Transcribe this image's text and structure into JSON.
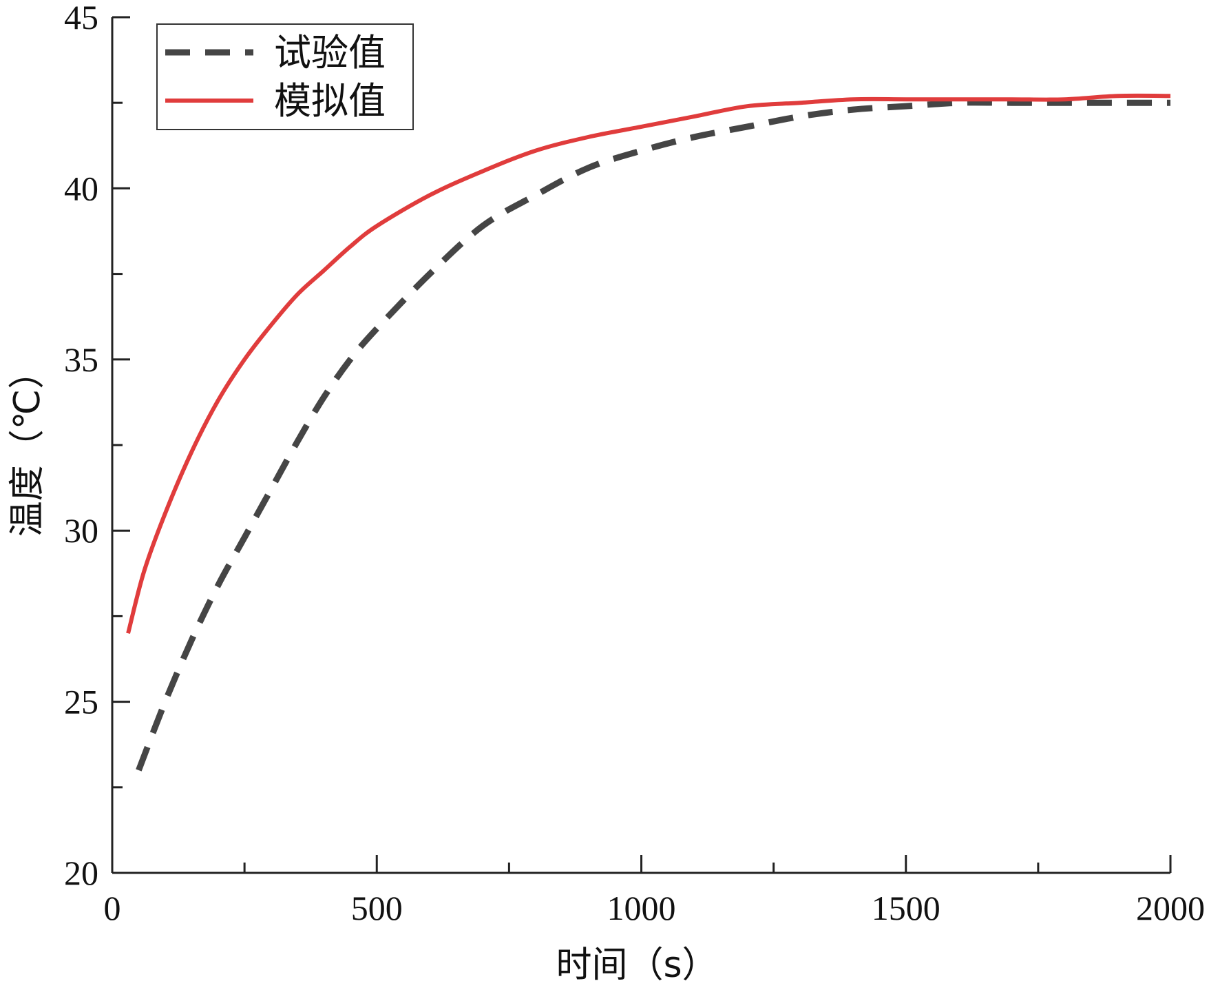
{
  "chart_data": {
    "type": "line",
    "xlabel": "时间（s）",
    "ylabel": "温度（℃）",
    "xlim": [
      0,
      2000
    ],
    "ylim": [
      20,
      45
    ],
    "x_ticks": [
      0,
      500,
      1000,
      1500,
      2000
    ],
    "x_minor_ticks": [
      250,
      750,
      1250,
      1750
    ],
    "y_ticks": [
      20,
      25,
      30,
      35,
      40,
      45
    ],
    "y_minor_ticks": [
      22.5,
      27.5,
      32.5,
      37.5,
      42.5
    ],
    "x_tick_labels": [
      "0",
      "500",
      "1000",
      "1500",
      "2000"
    ],
    "y_tick_labels": [
      "20",
      "25",
      "30",
      "35",
      "40",
      "45"
    ],
    "grid": false,
    "legend_position": "top-left",
    "series": [
      {
        "name": "试验值",
        "color": "#454545",
        "style": "dashed",
        "x": [
          50,
          100,
          150,
          200,
          250,
          300,
          350,
          400,
          450,
          500,
          600,
          700,
          800,
          900,
          1000,
          1100,
          1200,
          1300,
          1400,
          1500,
          1600,
          1700,
          1800,
          1900,
          2000
        ],
        "y": [
          23.0,
          25.0,
          26.8,
          28.4,
          29.8,
          31.2,
          32.6,
          33.9,
          35.0,
          35.9,
          37.5,
          38.9,
          39.8,
          40.6,
          41.1,
          41.5,
          41.8,
          42.1,
          42.3,
          42.4,
          42.5,
          42.5,
          42.5,
          42.5,
          42.5
        ]
      },
      {
        "name": "模拟值",
        "color": "#e03c3c",
        "style": "solid",
        "x": [
          30,
          60,
          100,
          150,
          200,
          250,
          300,
          350,
          400,
          450,
          500,
          600,
          700,
          800,
          900,
          1000,
          1100,
          1200,
          1300,
          1400,
          1500,
          1600,
          1700,
          1800,
          1900,
          2000
        ],
        "y": [
          27.0,
          28.8,
          30.5,
          32.3,
          33.8,
          35.0,
          36.0,
          36.9,
          37.6,
          38.3,
          38.9,
          39.8,
          40.5,
          41.1,
          41.5,
          41.8,
          42.1,
          42.4,
          42.5,
          42.6,
          42.6,
          42.6,
          42.6,
          42.6,
          42.7,
          42.7
        ]
      }
    ]
  }
}
